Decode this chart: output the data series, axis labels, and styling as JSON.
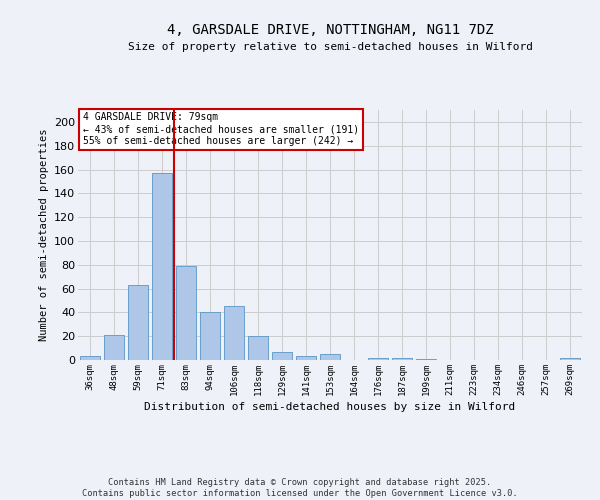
{
  "title1": "4, GARSDALE DRIVE, NOTTINGHAM, NG11 7DZ",
  "title2": "Size of property relative to semi-detached houses in Wilford",
  "xlabel": "Distribution of semi-detached houses by size in Wilford",
  "ylabel": "Number of semi-detached properties",
  "categories": [
    "36sqm",
    "48sqm",
    "59sqm",
    "71sqm",
    "83sqm",
    "94sqm",
    "106sqm",
    "118sqm",
    "129sqm",
    "141sqm",
    "153sqm",
    "164sqm",
    "176sqm",
    "187sqm",
    "199sqm",
    "211sqm",
    "223sqm",
    "234sqm",
    "246sqm",
    "257sqm",
    "269sqm"
  ],
  "values": [
    3,
    21,
    63,
    157,
    79,
    40,
    45,
    20,
    7,
    3,
    5,
    0,
    2,
    2,
    1,
    0,
    0,
    0,
    0,
    0,
    2
  ],
  "bar_color": "#aec6e8",
  "bar_edge_color": "#5a96c8",
  "vline_x_index": 4,
  "vline_color": "#cc0000",
  "annotation_title": "4 GARSDALE DRIVE: 79sqm",
  "annotation_line1": "← 43% of semi-detached houses are smaller (191)",
  "annotation_line2": "55% of semi-detached houses are larger (242) →",
  "annotation_box_color": "#cc0000",
  "annotation_bg": "#ffffff",
  "ylim": [
    0,
    210
  ],
  "yticks": [
    0,
    20,
    40,
    60,
    80,
    100,
    120,
    140,
    160,
    180,
    200
  ],
  "footer1": "Contains HM Land Registry data © Crown copyright and database right 2025.",
  "footer2": "Contains public sector information licensed under the Open Government Licence v3.0.",
  "bg_color": "#eef2f8",
  "plot_bg_color": "#eef2f8"
}
